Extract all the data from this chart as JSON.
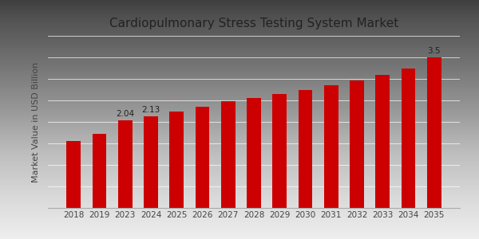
{
  "title": "Cardiopulmonary Stress Testing System Market",
  "ylabel": "Market Value in USD Billion",
  "categories": [
    "2018",
    "2019",
    "2023",
    "2024",
    "2025",
    "2026",
    "2027",
    "2028",
    "2029",
    "2030",
    "2031",
    "2032",
    "2033",
    "2034",
    "2035"
  ],
  "values": [
    1.55,
    1.72,
    2.04,
    2.13,
    2.25,
    2.36,
    2.48,
    2.55,
    2.65,
    2.75,
    2.85,
    2.97,
    3.1,
    3.25,
    3.5
  ],
  "bar_color": "#cc0000",
  "annotations": {
    "2023": "2.04",
    "2024": "2.13",
    "2035": "3.5"
  },
  "background_top": "#d8d8d8",
  "background_bottom": "#f5f5f5",
  "title_fontsize": 11,
  "axis_label_fontsize": 8,
  "tick_fontsize": 7.5,
  "ylim": [
    0,
    4.0
  ],
  "annotation_fontsize": 7.5,
  "bottom_bar_color": "#cc0000",
  "bottom_bar_height": 0.025
}
